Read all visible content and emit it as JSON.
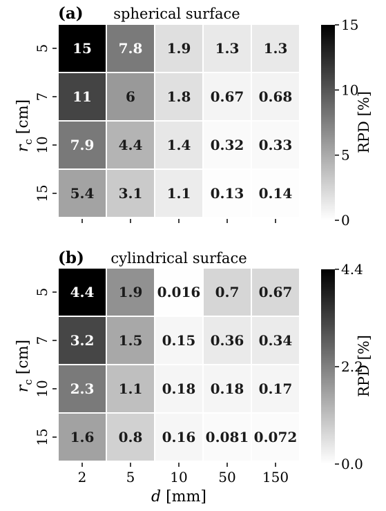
{
  "chart_data": [
    {
      "type": "heatmap",
      "panel_label": "(a)",
      "title": "spherical surface",
      "xlabel": "",
      "ylabel": "r_c [cm]",
      "x_categories": [
        "2",
        "5",
        "10",
        "50",
        "150"
      ],
      "y_categories": [
        "5",
        "7",
        "10",
        "15"
      ],
      "values": [
        [
          15,
          7.8,
          1.9,
          1.3,
          1.3
        ],
        [
          11,
          6,
          1.8,
          0.67,
          0.68
        ],
        [
          7.9,
          4.4,
          1.4,
          0.32,
          0.33
        ],
        [
          5.4,
          3.1,
          1.1,
          0.13,
          0.14
        ]
      ],
      "cell_labels": [
        [
          "15",
          "7.8",
          "1.9",
          "1.3",
          "1.3"
        ],
        [
          "11",
          "6",
          "1.8",
          "0.67",
          "0.68"
        ],
        [
          "7.9",
          "4.4",
          "1.4",
          "0.32",
          "0.33"
        ],
        [
          "5.4",
          "3.1",
          "1.1",
          "0.13",
          "0.14"
        ]
      ],
      "colorbar": {
        "label": "RPD [%]",
        "range": [
          0,
          15
        ],
        "ticks": [
          "0",
          "5",
          "10",
          "15"
        ],
        "tick_values": [
          0,
          5,
          10,
          15
        ],
        "colormap": "greys"
      }
    },
    {
      "type": "heatmap",
      "panel_label": "(b)",
      "title": "cylindrical surface",
      "xlabel": "d [mm]",
      "ylabel": "r_c [cm]",
      "x_categories": [
        "2",
        "5",
        "10",
        "50",
        "150"
      ],
      "y_categories": [
        "5",
        "7",
        "10",
        "15"
      ],
      "values": [
        [
          4.4,
          1.9,
          0.016,
          0.7,
          0.67
        ],
        [
          3.2,
          1.5,
          0.15,
          0.36,
          0.34
        ],
        [
          2.3,
          1.1,
          0.18,
          0.18,
          0.17
        ],
        [
          1.6,
          0.8,
          0.16,
          0.081,
          0.072
        ]
      ],
      "cell_labels": [
        [
          "4.4",
          "1.9",
          "0.016",
          "0.7",
          "0.67"
        ],
        [
          "3.2",
          "1.5",
          "0.15",
          "0.36",
          "0.34"
        ],
        [
          "2.3",
          "1.1",
          "0.18",
          "0.18",
          "0.17"
        ],
        [
          "1.6",
          "0.8",
          "0.16",
          "0.081",
          "0.072"
        ]
      ],
      "colorbar": {
        "label": "RPD [%]",
        "range": [
          0,
          4.4
        ],
        "ticks": [
          "0.0",
          "2.2",
          "4.4"
        ],
        "tick_values": [
          0,
          2.2,
          4.4
        ],
        "colormap": "greys"
      }
    }
  ]
}
